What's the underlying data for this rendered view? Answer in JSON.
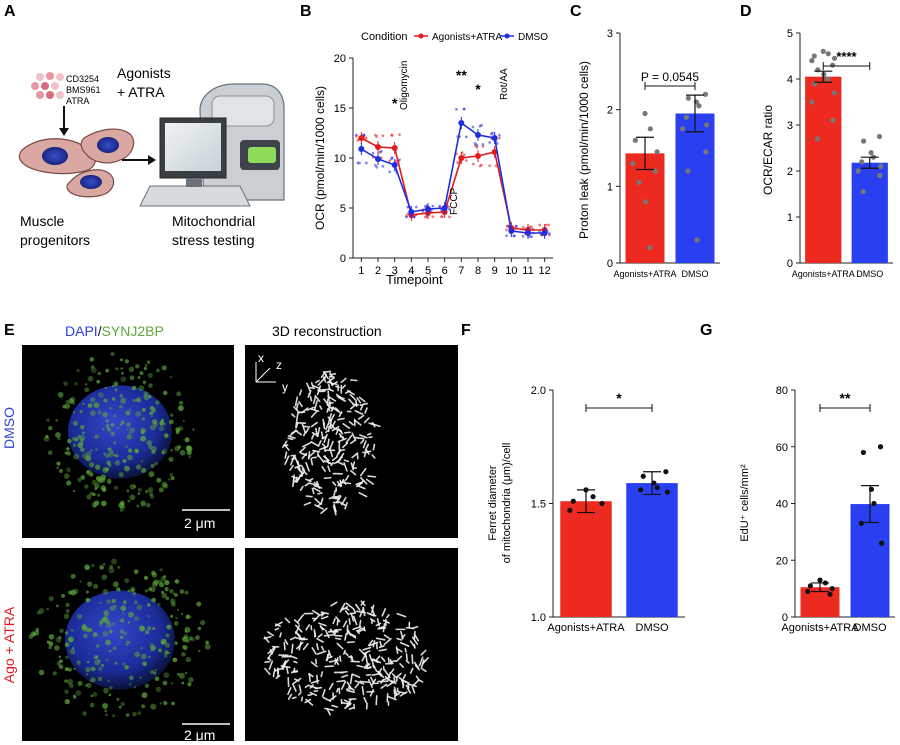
{
  "colors": {
    "agonists": "#e41a1c",
    "dmso": "#1f2de0",
    "bar_red": "#ed2a1f",
    "bar_blue": "#2a40f0",
    "dapi": "#2f43d8",
    "synj2bp": "#5da83a"
  },
  "panelA": {
    "letter": "A",
    "compounds": [
      "CD3254",
      "BMS961",
      "ATRA"
    ],
    "treatment_line1": "Agonists",
    "treatment_line2": "+ ATRA",
    "left_caption_line1": "Muscle",
    "left_caption_line2": "progenitors",
    "right_caption_line1": "Mitochondrial",
    "right_caption_line2": "stress testing"
  },
  "panelE": {
    "letter": "E",
    "title_dapi": "DAPI",
    "title_sep": "/",
    "title_synj": "SYNJ2BP",
    "title_recon": "3D reconstruction",
    "row_dmso": "DMSO",
    "row_ago": "Ago + ATRA",
    "scalebar_top": "2 μm",
    "scalebar_bottom": "2 μm",
    "axis_x": "x",
    "axis_y": "y",
    "axis_z": "z"
  },
  "chart_data": [
    {
      "id": "B",
      "letter": "B",
      "type": "line",
      "legend_title": "Condition",
      "legend_position": "top",
      "xlabel": "Timepoint",
      "ylabel": "OCR (pmol/min/1000 cells)",
      "xlim": [
        0.5,
        12.5
      ],
      "ylim": [
        0,
        20
      ],
      "yticks": [
        0,
        5,
        10,
        15,
        20
      ],
      "x": [
        1,
        2,
        3,
        4,
        5,
        6,
        7,
        8,
        9,
        10,
        11,
        12
      ],
      "series": [
        {
          "name": "Agonists+ATRA",
          "values": [
            12.0,
            11.1,
            11.0,
            4.3,
            4.5,
            4.6,
            10.0,
            10.2,
            10.6,
            3.0,
            2.8,
            2.8
          ]
        },
        {
          "name": "DMSO",
          "values": [
            10.9,
            9.9,
            9.3,
            4.6,
            4.9,
            5.0,
            13.5,
            12.3,
            12.0,
            2.7,
            2.5,
            2.5
          ]
        }
      ],
      "annotations": [
        {
          "text": "Oligomycin",
          "x": 3.5
        },
        {
          "text": "FCCP",
          "x": 6.5
        },
        {
          "text": "Rot/AA",
          "x": 9.5
        }
      ],
      "significance": [
        {
          "text": "*",
          "x": 3
        },
        {
          "text": "**",
          "x": 7
        },
        {
          "text": "*",
          "x": 8
        }
      ]
    },
    {
      "id": "C",
      "letter": "C",
      "type": "bar",
      "ylabel": "Proton leak (pmol/min/1000 cells)",
      "ylim": [
        0,
        3
      ],
      "yticks": [
        0,
        1,
        2,
        3
      ],
      "categories": [
        "Agonists+ATRA",
        "DMSO"
      ],
      "values": [
        1.43,
        1.95
      ],
      "errors": [
        0.21,
        0.24
      ],
      "points": [
        [
          1.95,
          1.75,
          1.6,
          1.45,
          1.3,
          1.2,
          1.05,
          0.8,
          0.2
        ],
        [
          2.2,
          2.15,
          2.1,
          2.05,
          1.9,
          1.8,
          1.75,
          1.45,
          1.2,
          0.3
        ]
      ],
      "comparison_label": "P = 0.0545"
    },
    {
      "id": "D",
      "letter": "D",
      "type": "bar",
      "ylabel": "OCR/ECAR ratio",
      "ylim": [
        0,
        5
      ],
      "yticks": [
        0,
        1,
        2,
        3,
        4,
        5
      ],
      "categories": [
        "Agonists+ATRA",
        "DMSO"
      ],
      "values": [
        4.05,
        2.18
      ],
      "errors": [
        0.12,
        0.12
      ],
      "points": [
        [
          4.6,
          4.55,
          4.5,
          4.45,
          4.4,
          4.3,
          4.2,
          4.1,
          4.0,
          3.9,
          3.7,
          3.5,
          3.1,
          2.7
        ],
        [
          2.75,
          2.65,
          2.4,
          2.3,
          2.2,
          2.1,
          2.0,
          1.9,
          1.55
        ]
      ],
      "comparison_label": "****"
    },
    {
      "id": "F",
      "letter": "F",
      "type": "bar",
      "ylabel_line1": "Ferret diameter",
      "ylabel_line2": "of mitochondria (μm)/cell",
      "ylim": [
        1.0,
        2.0
      ],
      "yticks": [
        1.0,
        1.5,
        2.0
      ],
      "categories": [
        "Agonists+ATRA",
        "DMSO"
      ],
      "values": [
        1.51,
        1.59
      ],
      "errors": [
        0.05,
        0.05
      ],
      "points": [
        [
          1.56,
          1.53,
          1.51,
          1.5,
          1.47
        ],
        [
          1.64,
          1.62,
          1.59,
          1.57,
          1.56,
          1.55
        ]
      ],
      "comparison_label": "*"
    },
    {
      "id": "G",
      "letter": "G",
      "type": "bar",
      "ylabel": "EdU⁺ cells/mm²",
      "ylim": [
        0,
        80
      ],
      "yticks": [
        0,
        20,
        40,
        60,
        80
      ],
      "categories": [
        "Agonists+ATRA",
        "DMSO"
      ],
      "values": [
        10.5,
        39.8
      ],
      "errors": [
        1.5,
        6.5
      ],
      "points": [
        [
          13,
          12,
          11,
          10,
          9,
          8
        ],
        [
          60,
          58,
          45,
          40,
          33,
          26
        ]
      ],
      "comparison_label": "**"
    }
  ]
}
